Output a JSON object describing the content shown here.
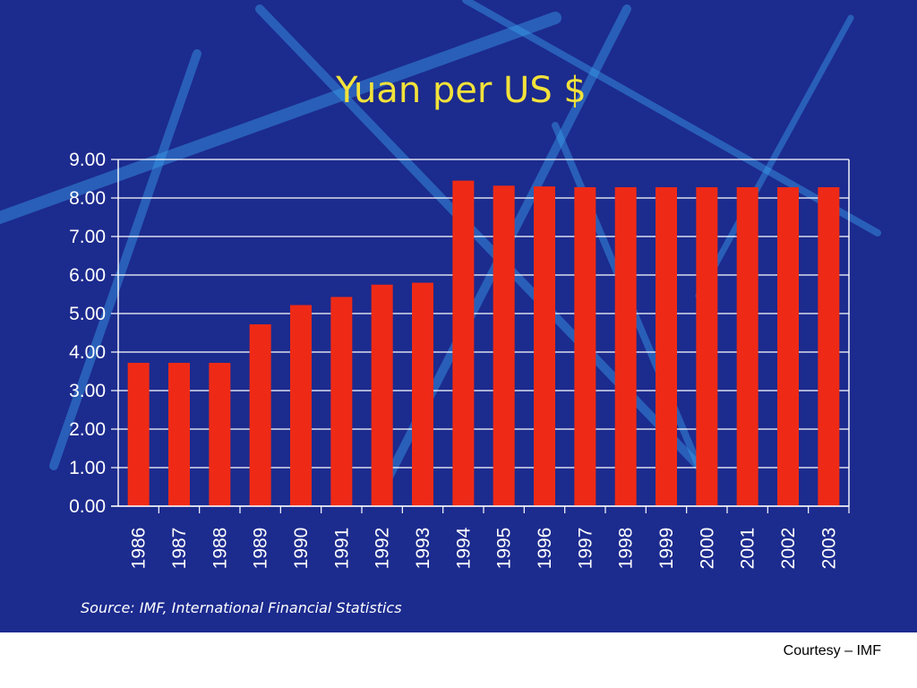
{
  "chart_data": {
    "type": "bar",
    "title": "Yuan per US $",
    "xlabel": "",
    "ylabel": "",
    "categories": [
      "1986",
      "1987",
      "1988",
      "1989",
      "1990",
      "1991",
      "1992",
      "1993",
      "1994",
      "1995",
      "1996",
      "1997",
      "1998",
      "1999",
      "2000",
      "2001",
      "2002",
      "2003"
    ],
    "values": [
      3.72,
      3.72,
      3.72,
      4.72,
      5.22,
      5.43,
      5.75,
      5.8,
      8.45,
      8.32,
      8.3,
      8.28,
      8.28,
      8.28,
      8.28,
      8.28,
      8.28,
      8.28
    ],
    "ylim": [
      0,
      9
    ],
    "yticks": [
      "0.00",
      "1.00",
      "2.00",
      "3.00",
      "4.00",
      "5.00",
      "6.00",
      "7.00",
      "8.00",
      "9.00"
    ],
    "grid": true,
    "legend": "none"
  },
  "source": "Source: IMF, International Financial Statistics",
  "courtesy": "Courtesy – IMF",
  "colors": {
    "background": "#1c2b8e",
    "bar": "#ee2a16",
    "title": "#f2e23a",
    "grid": "#ffffff",
    "text": "#ffffff",
    "streak": "#3aa0ea"
  }
}
